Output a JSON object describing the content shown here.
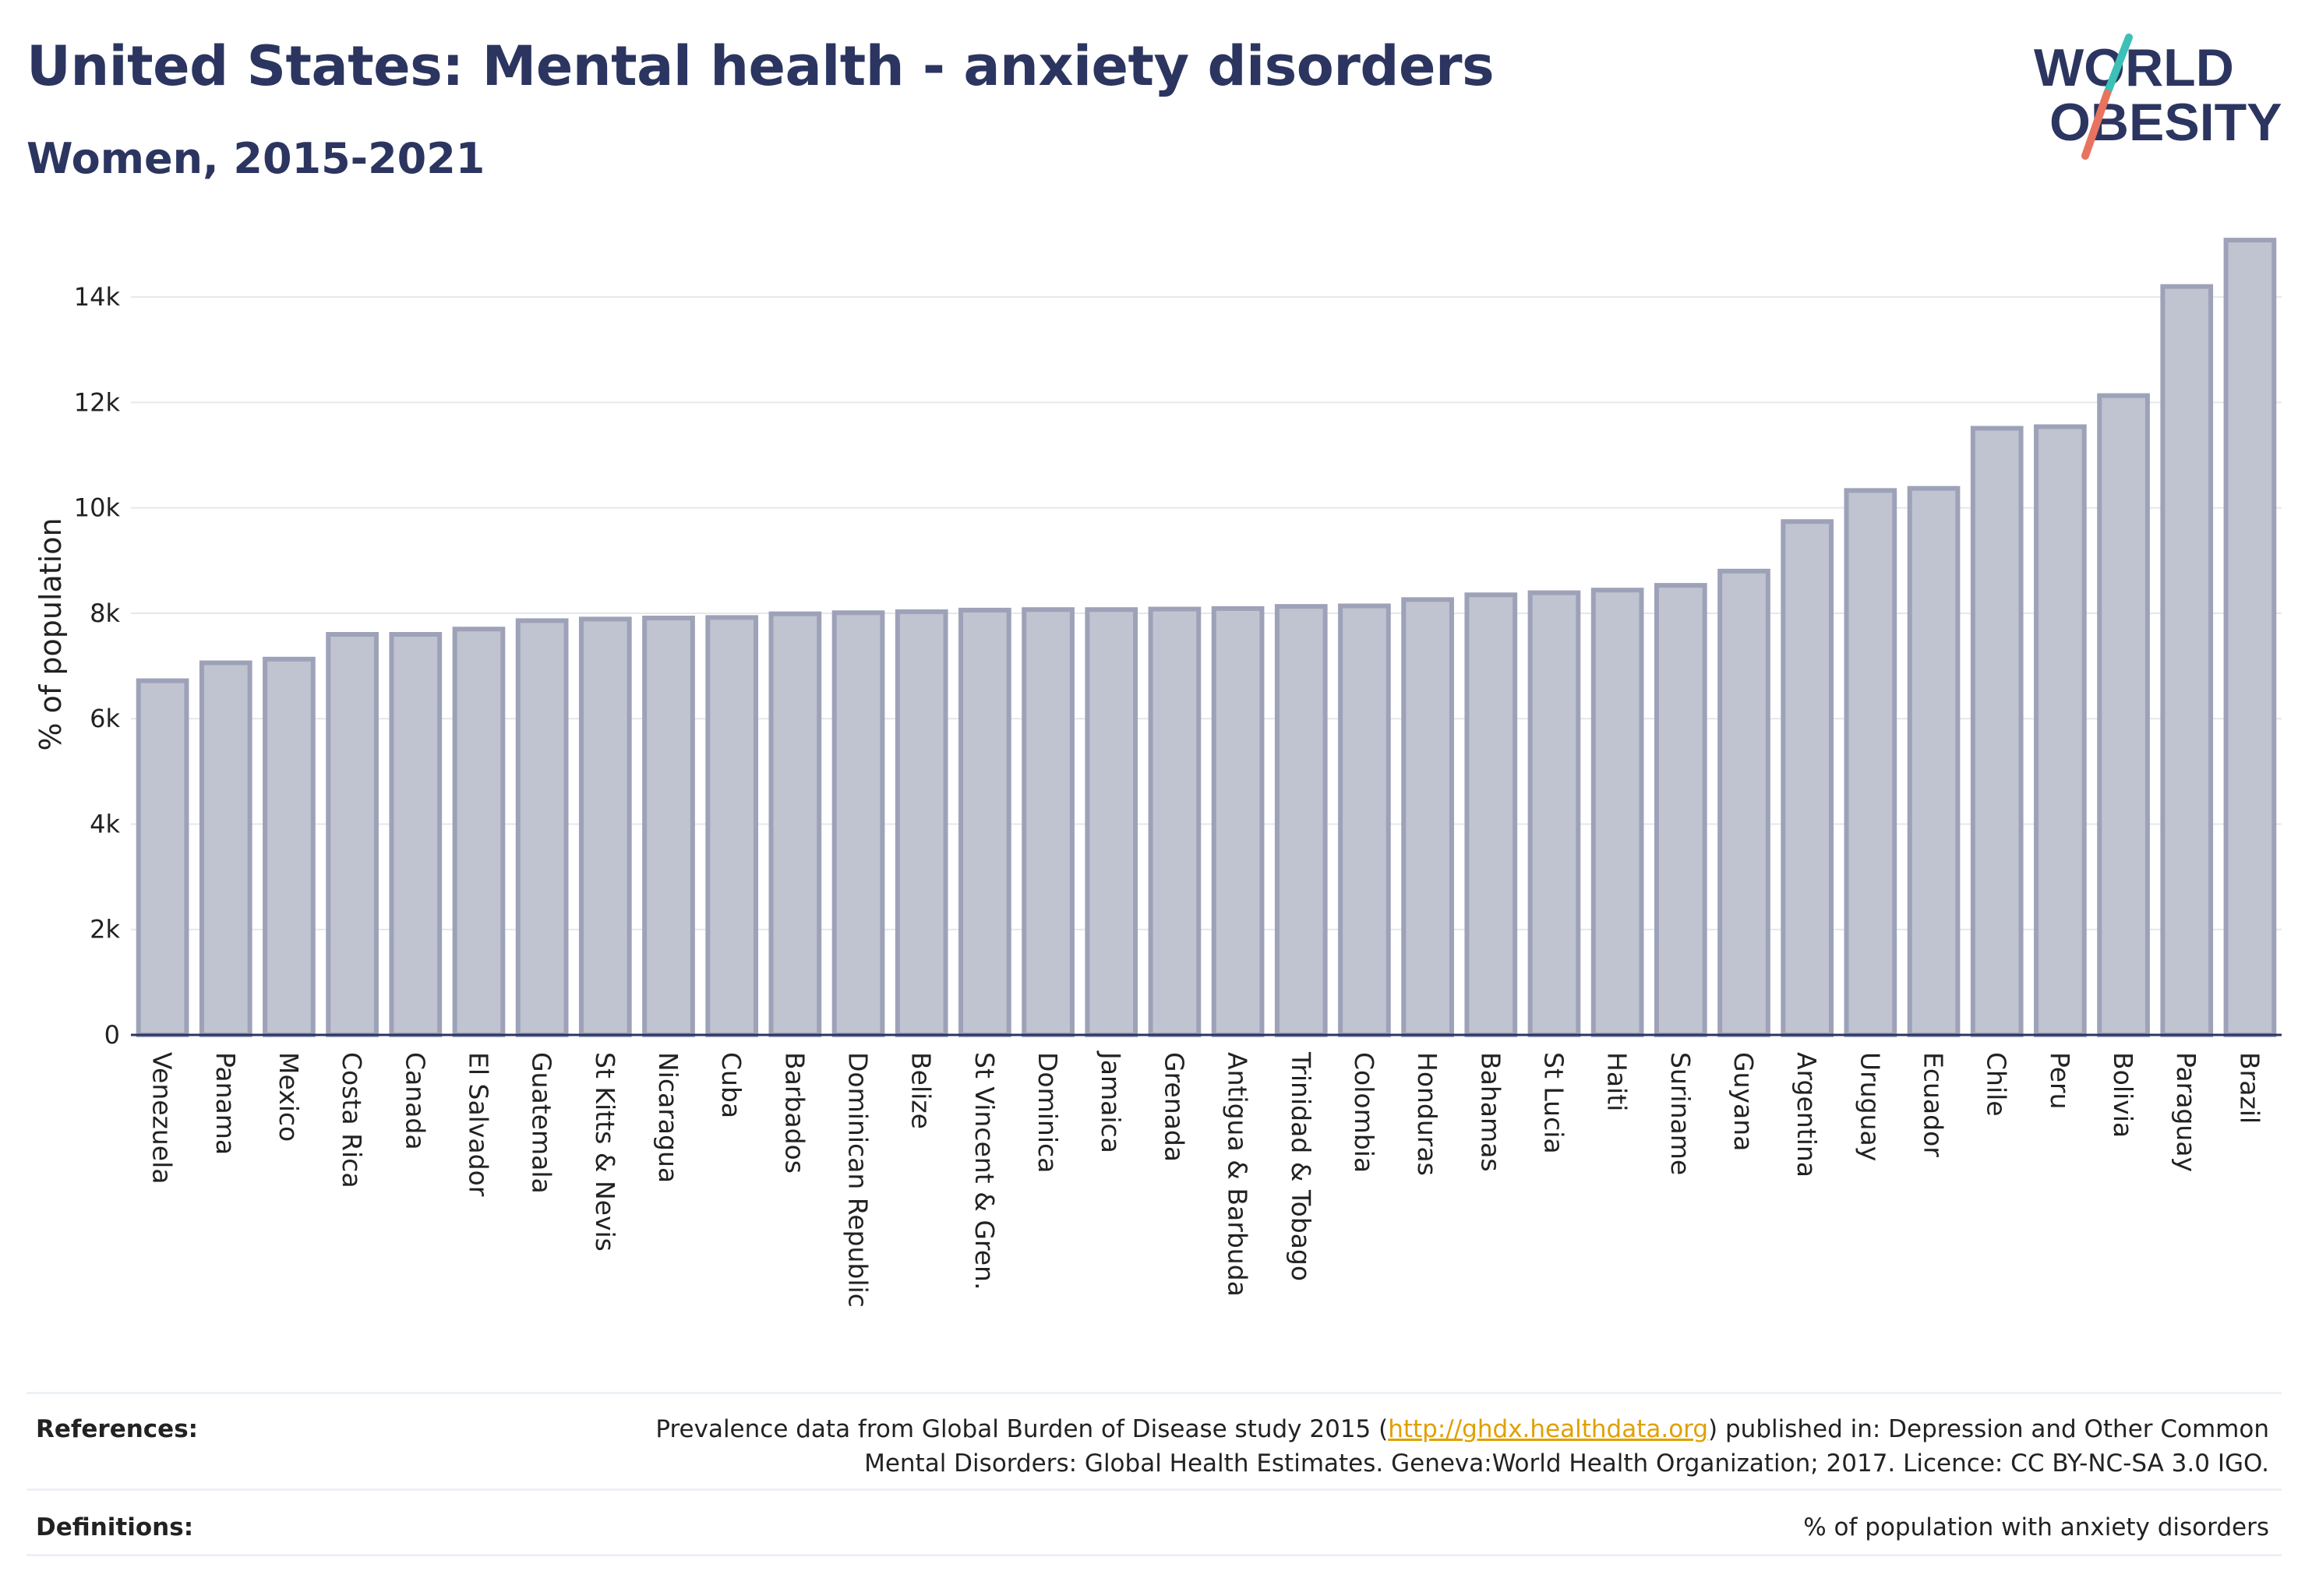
{
  "header": {
    "title": "United States: Mental health - anxiety disorders",
    "subtitle": "Women, 2015-2021"
  },
  "logo": {
    "line1": "WORLD",
    "line2": "OBESITY",
    "colors": {
      "text": "#2b3560",
      "slash_teal": "#3cc0b8",
      "slash_coral": "#e8735f"
    }
  },
  "chart_data": {
    "type": "bar",
    "ylabel": "% of population",
    "xlabel": "",
    "ylim": [
      0,
      15200
    ],
    "yticks": [
      0,
      2000,
      4000,
      6000,
      8000,
      10000,
      12000,
      14000
    ],
    "ytick_labels": [
      "0",
      "2k",
      "4k",
      "6k",
      "8k",
      "10k",
      "12k",
      "14k"
    ],
    "grid": true,
    "bar_fill": "#c0c3d0",
    "bar_stroke": "#9da2b8",
    "categories": [
      "Venezuela",
      "Panama",
      "Mexico",
      "Costa Rica",
      "Canada",
      "El Salvador",
      "Guatemala",
      "St Kitts & Nevis",
      "Nicaragua",
      "Cuba",
      "Barbados",
      "Dominican Republic",
      "Belize",
      "St Vincent & Gren.",
      "Dominica",
      "Jamaica",
      "Grenada",
      "Antigua & Barbuda",
      "Trinidad & Tobago",
      "Colombia",
      "Honduras",
      "Bahamas",
      "St Lucia",
      "Haiti",
      "Suriname",
      "Guyana",
      "Argentina",
      "Uruguay",
      "Ecuador",
      "Chile",
      "Peru",
      "Bolivia",
      "Paraguay",
      "Brazil"
    ],
    "values": [
      6720,
      7060,
      7130,
      7600,
      7600,
      7700,
      7860,
      7890,
      7910,
      7920,
      7990,
      8010,
      8030,
      8060,
      8070,
      8070,
      8080,
      8090,
      8130,
      8140,
      8260,
      8350,
      8390,
      8440,
      8530,
      8800,
      9740,
      10330,
      10370,
      11510,
      11540,
      12130,
      14200,
      15080
    ]
  },
  "footer": {
    "references_label": "References:",
    "references_text_before": "Prevalence data from Global Burden of Disease study 2015 (",
    "references_link": "http://ghdx.healthdata.org",
    "references_text_after": ") published in: Depression and Other Common",
    "references_line2": "Mental Disorders: Global Health Estimates. Geneva:World Health Organization; 2017. Licence: CC BY-NC-SA 3.0 IGO.",
    "definitions_label": "Definitions:",
    "definitions_text": "% of population with anxiety disorders"
  }
}
